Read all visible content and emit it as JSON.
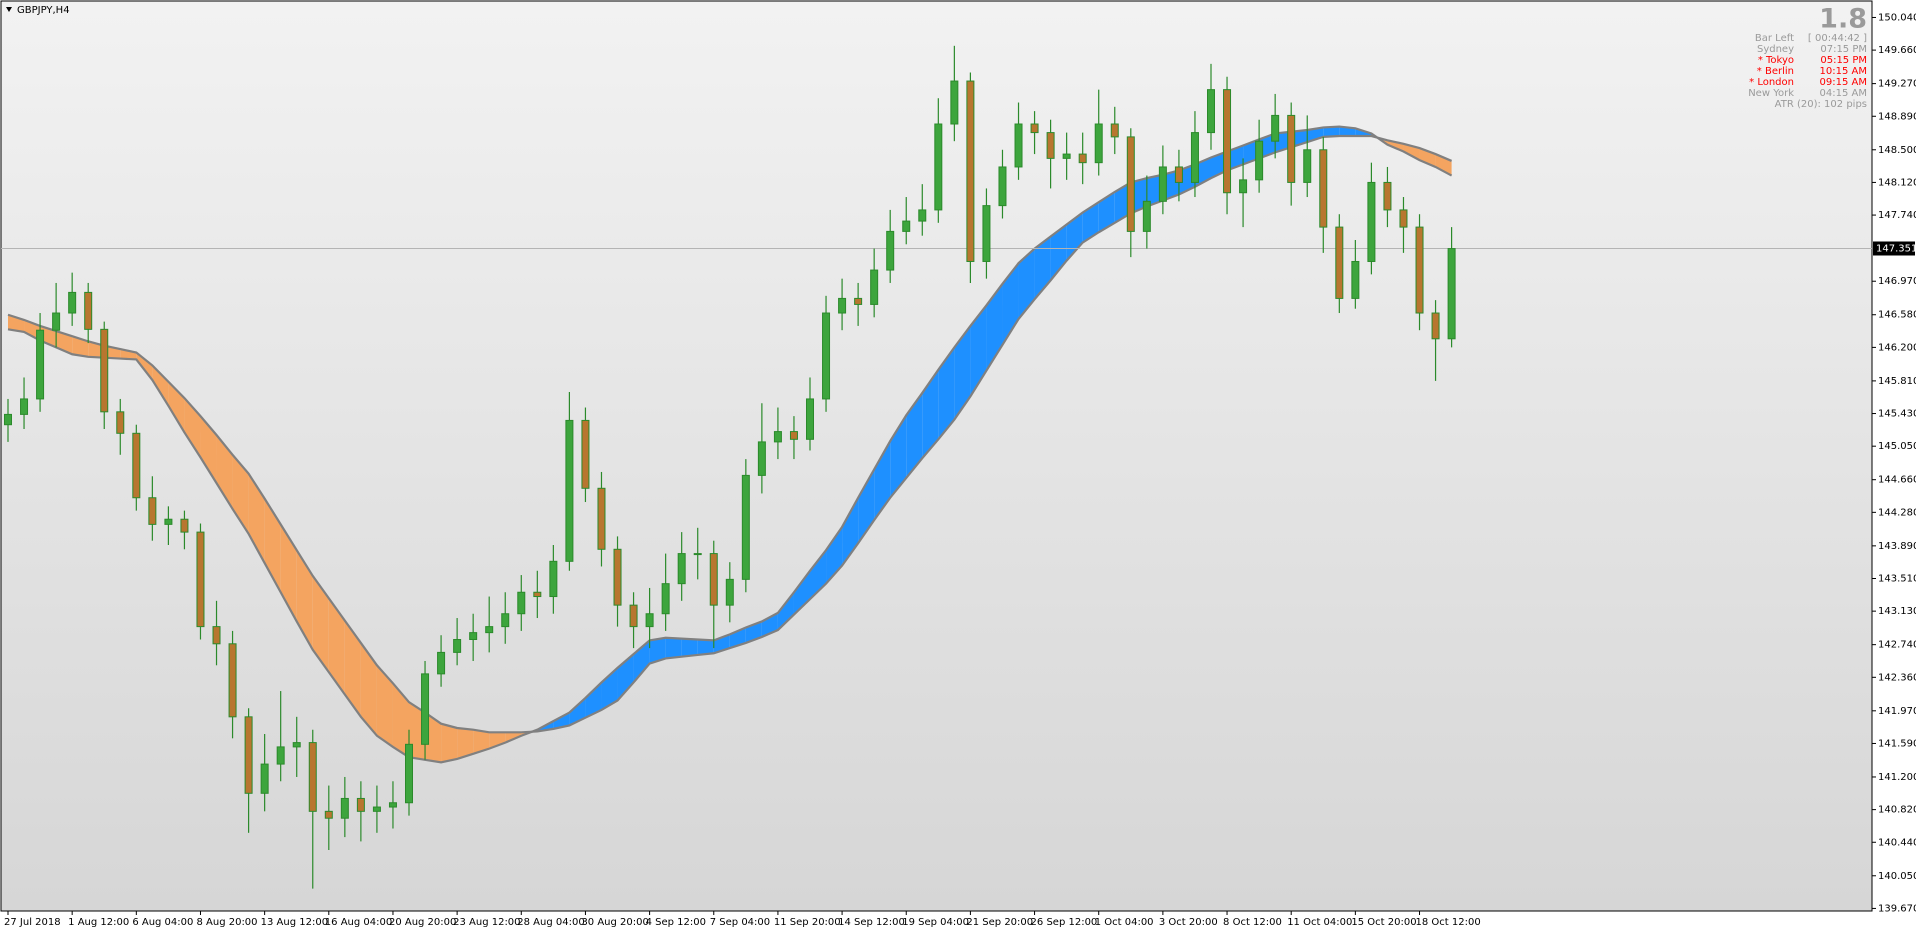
{
  "chart_data": {
    "type": "candlestick",
    "title": "GBPJPY,H4",
    "categories": [
      "27 Jul 2018",
      null,
      null,
      null,
      "1 Aug 12:00",
      null,
      null,
      null,
      "6 Aug 04:00",
      null,
      null,
      null,
      "8 Aug 20:00",
      null,
      null,
      null,
      "13 Aug 12:00",
      null,
      null,
      null,
      "16 Aug 04:00",
      null,
      null,
      null,
      "20 Aug 20:00",
      null,
      null,
      null,
      "23 Aug 12:00",
      null,
      null,
      null,
      "28 Aug 04:00",
      null,
      null,
      null,
      "30 Aug 20:00",
      null,
      null,
      null,
      "4 Sep 12:00",
      null,
      null,
      null,
      "7 Sep 04:00",
      null,
      null,
      null,
      "11 Sep 20:00",
      null,
      null,
      null,
      "14 Sep 12:00",
      null,
      null,
      null,
      "19 Sep 04:00",
      null,
      null,
      null,
      "21 Sep 20:00",
      null,
      null,
      null,
      "26 Sep 12:00",
      null,
      null,
      null,
      "1 Oct 04:00",
      null,
      null,
      null,
      "3 Oct 20:00",
      null,
      null,
      null,
      "8 Oct 12:00",
      null,
      null,
      null,
      "11 Oct 04:00",
      null,
      null,
      null,
      "15 Oct 20:00",
      null,
      null,
      null,
      "18 Oct 12:00",
      null,
      null
    ],
    "open": [
      145.3,
      145.42,
      145.6,
      146.4,
      146.6,
      146.84,
      146.41,
      145.45,
      145.2,
      144.45,
      144.14,
      144.2,
      144.05,
      142.95,
      142.75,
      141.9,
      141.01,
      141.35,
      141.55,
      141.6,
      140.8,
      140.72,
      140.95,
      140.8,
      140.85,
      140.9,
      141.58,
      142.4,
      142.65,
      142.8,
      142.88,
      142.95,
      143.1,
      143.35,
      143.3,
      143.71,
      145.35,
      144.56,
      143.85,
      143.2,
      142.95,
      143.1,
      143.45,
      143.8,
      143.8,
      143.2,
      143.5,
      144.71,
      145.1,
      145.22,
      145.13,
      145.6,
      146.6,
      146.77,
      146.7,
      147.1,
      147.55,
      147.67,
      147.8,
      148.8,
      149.3,
      147.2,
      147.85,
      148.3,
      148.8,
      148.7,
      148.4,
      148.45,
      148.35,
      148.8,
      148.65,
      147.55,
      147.9,
      148.3,
      148.12,
      148.7,
      149.2,
      148.0,
      148.15,
      148.6,
      148.9,
      148.12,
      148.5,
      147.6,
      146.77,
      147.2,
      148.12,
      147.8,
      147.6,
      146.6,
      146.3
    ],
    "high": [
      145.6,
      145.85,
      146.6,
      146.95,
      147.07,
      146.95,
      146.5,
      145.6,
      145.3,
      144.7,
      144.35,
      144.3,
      144.15,
      143.25,
      142.9,
      142.0,
      141.7,
      142.2,
      141.9,
      141.75,
      141.1,
      141.2,
      141.15,
      141.1,
      141.15,
      141.75,
      142.55,
      142.85,
      143.05,
      143.1,
      143.3,
      143.35,
      143.55,
      143.6,
      143.9,
      145.68,
      145.5,
      144.75,
      144.0,
      143.35,
      143.4,
      143.8,
      144.05,
      144.1,
      143.95,
      143.7,
      144.9,
      145.55,
      145.5,
      145.4,
      145.85,
      146.8,
      147.0,
      146.95,
      147.35,
      147.8,
      147.95,
      148.1,
      149.1,
      149.71,
      149.4,
      148.05,
      148.5,
      149.05,
      148.95,
      148.85,
      148.7,
      148.7,
      149.2,
      149.0,
      148.75,
      148.2,
      148.55,
      148.5,
      148.95,
      149.5,
      149.35,
      148.4,
      148.85,
      149.15,
      149.05,
      148.9,
      148.65,
      147.75,
      147.45,
      148.35,
      148.3,
      147.95,
      147.75,
      146.75,
      147.6
    ],
    "low": [
      145.1,
      145.25,
      145.45,
      146.2,
      146.45,
      146.25,
      145.25,
      144.95,
      144.3,
      143.95,
      143.9,
      143.85,
      142.8,
      142.5,
      141.65,
      140.55,
      140.8,
      141.15,
      141.2,
      139.9,
      140.35,
      140.5,
      140.45,
      140.55,
      140.6,
      140.75,
      141.4,
      142.25,
      142.5,
      142.55,
      142.65,
      142.75,
      142.9,
      143.05,
      143.1,
      143.6,
      144.4,
      143.65,
      142.95,
      142.7,
      142.7,
      142.9,
      143.25,
      143.5,
      142.7,
      143.0,
      143.35,
      144.5,
      144.9,
      144.9,
      145.0,
      145.45,
      146.4,
      146.45,
      146.55,
      146.95,
      147.4,
      147.5,
      147.65,
      148.6,
      146.95,
      147.0,
      147.7,
      148.15,
      148.45,
      148.05,
      148.15,
      148.1,
      148.2,
      148.45,
      147.25,
      147.35,
      147.75,
      147.9,
      147.95,
      148.5,
      147.75,
      147.6,
      148.0,
      148.4,
      147.85,
      147.95,
      147.3,
      146.6,
      146.65,
      147.05,
      147.6,
      147.3,
      146.4,
      145.81,
      146.2
    ],
    "close": [
      145.42,
      145.6,
      146.4,
      146.6,
      146.84,
      146.41,
      145.45,
      145.2,
      144.45,
      144.14,
      144.2,
      144.05,
      142.95,
      142.75,
      141.9,
      141.01,
      141.35,
      141.55,
      141.6,
      140.8,
      140.72,
      140.95,
      140.8,
      140.85,
      140.9,
      141.58,
      142.4,
      142.65,
      142.8,
      142.88,
      142.95,
      143.1,
      143.35,
      143.3,
      143.71,
      145.35,
      144.56,
      143.85,
      143.2,
      142.95,
      143.1,
      143.45,
      143.8,
      143.8,
      143.2,
      143.5,
      144.71,
      145.1,
      145.22,
      145.13,
      145.6,
      146.6,
      146.77,
      146.7,
      147.1,
      147.55,
      147.67,
      147.8,
      148.8,
      149.3,
      147.2,
      147.85,
      148.3,
      148.8,
      148.7,
      148.4,
      148.45,
      148.35,
      148.8,
      148.65,
      147.55,
      147.9,
      148.3,
      148.12,
      148.7,
      149.2,
      148.0,
      148.15,
      148.6,
      148.9,
      148.12,
      148.5,
      147.6,
      146.77,
      147.2,
      148.12,
      147.8,
      147.6,
      146.6,
      146.3,
      147.35
    ],
    "wick_color": "#2b8a2b",
    "up_color": "#3da53d",
    "down_color": "#b8762f",
    "bands": {
      "fast": [
        146.41,
        146.38,
        146.28,
        146.2,
        146.12,
        146.09,
        146.08,
        146.07,
        146.06,
        145.82,
        145.52,
        145.21,
        144.92,
        144.62,
        144.32,
        144.03,
        143.69,
        143.35,
        143.01,
        142.68,
        142.42,
        142.16,
        141.9,
        141.68,
        141.55,
        141.43,
        141.4,
        141.37,
        141.41,
        141.47,
        141.53,
        141.6,
        141.68,
        141.75,
        141.85,
        141.95,
        142.12,
        142.3,
        142.47,
        142.63,
        142.79,
        142.82,
        142.81,
        142.8,
        142.79,
        142.86,
        142.94,
        143.01,
        143.11,
        143.35,
        143.6,
        143.84,
        144.11,
        144.45,
        144.78,
        145.11,
        145.41,
        145.67,
        145.94,
        146.2,
        146.45,
        146.69,
        146.94,
        147.18,
        147.35,
        147.49,
        147.63,
        147.77,
        147.89,
        148.01,
        148.12,
        148.17,
        148.21,
        148.26,
        148.33,
        148.41,
        148.48,
        148.55,
        148.62,
        148.69,
        148.71,
        148.73,
        148.76,
        148.77,
        148.75,
        148.69,
        148.56,
        148.48,
        148.38,
        148.3,
        148.2
      ],
      "slow": [
        146.58,
        146.52,
        146.45,
        146.39,
        146.33,
        146.27,
        146.22,
        146.18,
        146.14,
        145.99,
        145.8,
        145.61,
        145.4,
        145.18,
        144.95,
        144.73,
        144.44,
        144.14,
        143.84,
        143.54,
        143.28,
        143.02,
        142.76,
        142.5,
        142.29,
        142.07,
        141.95,
        141.82,
        141.77,
        141.75,
        141.72,
        141.72,
        141.72,
        141.73,
        141.76,
        141.8,
        141.89,
        141.98,
        142.09,
        142.3,
        142.52,
        142.58,
        142.6,
        142.62,
        142.64,
        142.7,
        142.76,
        142.83,
        142.91,
        143.09,
        143.27,
        143.45,
        143.66,
        143.92,
        144.19,
        144.45,
        144.68,
        144.91,
        145.13,
        145.36,
        145.63,
        145.93,
        146.23,
        146.53,
        146.76,
        146.98,
        147.21,
        147.42,
        147.54,
        147.65,
        147.76,
        147.84,
        147.91,
        147.98,
        148.07,
        148.17,
        148.26,
        148.33,
        148.4,
        148.47,
        148.53,
        148.59,
        148.65,
        148.66,
        148.66,
        148.66,
        148.61,
        148.57,
        148.52,
        148.45,
        148.37
      ],
      "up_color": "#1e90ff",
      "down_color": "#f4a460",
      "line_color": "#808080"
    },
    "ylim": [
      139.64,
      150.22
    ],
    "yticks": [
      {
        "value": 150.04,
        "label": "150.040"
      },
      {
        "value": 149.66,
        "label": "149.660"
      },
      {
        "value": 149.27,
        "label": "149.270"
      },
      {
        "value": 148.89,
        "label": "148.890"
      },
      {
        "value": 148.5,
        "label": "148.500"
      },
      {
        "value": 148.12,
        "label": "148.120"
      },
      {
        "value": 147.74,
        "label": "147.740"
      },
      {
        "value": 146.97,
        "label": "146.970"
      },
      {
        "value": 146.58,
        "label": "146.580"
      },
      {
        "value": 146.2,
        "label": "146.200"
      },
      {
        "value": 145.81,
        "label": "145.810"
      },
      {
        "value": 145.43,
        "label": "145.430"
      },
      {
        "value": 145.05,
        "label": "145.050"
      },
      {
        "value": 144.66,
        "label": "144.660"
      },
      {
        "value": 144.28,
        "label": "144.280"
      },
      {
        "value": 143.89,
        "label": "143.890"
      },
      {
        "value": 143.51,
        "label": "143.510"
      },
      {
        "value": 143.13,
        "label": "143.130"
      },
      {
        "value": 142.74,
        "label": "142.740"
      },
      {
        "value": 142.36,
        "label": "142.360"
      },
      {
        "value": 141.97,
        "label": "141.970"
      },
      {
        "value": 141.59,
        "label": "141.590"
      },
      {
        "value": 141.2,
        "label": "141.200"
      },
      {
        "value": 140.82,
        "label": "140.820"
      },
      {
        "value": 140.44,
        "label": "140.440"
      },
      {
        "value": 140.05,
        "label": "140.050"
      },
      {
        "value": 139.67,
        "label": "139.670"
      }
    ],
    "current_price": 147.351,
    "info_panel": {
      "spread": 1.8,
      "rows": [
        {
          "label": "Bar Left",
          "value": "[ 00:44:42 ]",
          "color": "#9a9a9a"
        },
        {
          "label": "Sydney",
          "value": "07:15 PM",
          "color": "#9a9a9a"
        },
        {
          "label": "* Tokyo",
          "value": "05:15 PM",
          "color": "#ff0000"
        },
        {
          "label": "* Berlin",
          "value": "10:15 AM",
          "color": "#ff0000"
        },
        {
          "label": "* London",
          "value": "09:15 AM",
          "color": "#ff0000"
        },
        {
          "label": "New York",
          "value": "04:15 AM",
          "color": "#9a9a9a"
        }
      ],
      "atr": "ATR (20): 102 pips"
    }
  }
}
